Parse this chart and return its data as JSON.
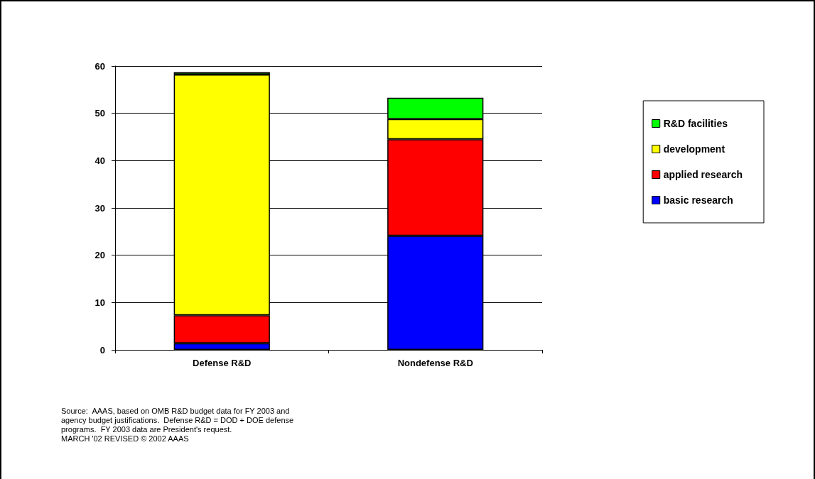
{
  "chart_data": {
    "type": "bar",
    "stacked": true,
    "categories": [
      "Defense R&D",
      "Nondefense R&D"
    ],
    "series": [
      {
        "name": "basic research",
        "color": "#0000ff",
        "values": [
          1.4,
          24.1
        ]
      },
      {
        "name": "applied research",
        "color": "#ff0000",
        "values": [
          5.9,
          20.4
        ]
      },
      {
        "name": "development",
        "color": "#ffff00",
        "values": [
          50.9,
          4.3
        ]
      },
      {
        "name": "R&D facilities",
        "color": "#00ff00",
        "values": [
          0.5,
          4.5
        ]
      }
    ],
    "ylim": [
      0,
      60
    ],
    "yticks": [
      0,
      10,
      20,
      30,
      40,
      50,
      60
    ],
    "grid": "y",
    "legend": "right",
    "annotations": [
      "Source:  AAAS, based on OMB R&D budget data for FY 2003 and\nagency budget justifications.  Defense R&D = DOD + DOE defense\nprograms.  FY 2003 data are President's request.\nMARCH '02 REVISED © 2002 AAAS"
    ]
  }
}
